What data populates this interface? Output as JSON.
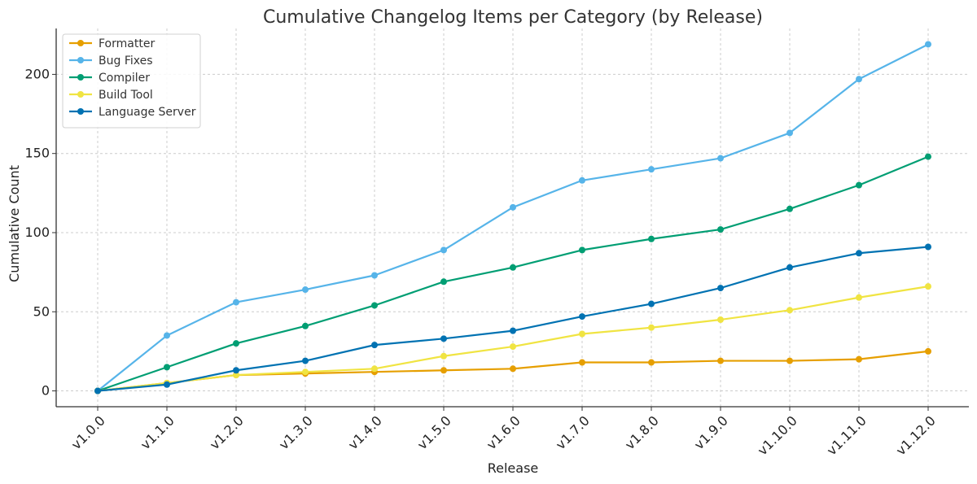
{
  "chart_data": {
    "type": "line",
    "title": "Cumulative Changelog Items per Category (by Release)",
    "xlabel": "Release",
    "ylabel": "Cumulative Count",
    "categories": [
      "v1.0.0",
      "v1.1.0",
      "v1.2.0",
      "v1.3.0",
      "v1.4.0",
      "v1.5.0",
      "v1.6.0",
      "v1.7.0",
      "v1.8.0",
      "v1.9.0",
      "v1.10.0",
      "v1.11.0",
      "v1.12.0"
    ],
    "ylim": [
      -10,
      229
    ],
    "yticks": [
      0,
      50,
      100,
      150,
      200
    ],
    "grid": true,
    "legend_position": "top-left",
    "series": [
      {
        "name": "Formatter",
        "color": "#E69F00",
        "values": [
          0,
          5,
          10,
          11,
          12,
          13,
          14,
          18,
          18,
          19,
          19,
          20,
          25
        ]
      },
      {
        "name": "Bug Fixes",
        "color": "#56B4E9",
        "values": [
          0,
          35,
          56,
          64,
          73,
          89,
          116,
          133,
          140,
          147,
          163,
          197,
          219
        ]
      },
      {
        "name": "Compiler",
        "color": "#009E73",
        "values": [
          0,
          15,
          30,
          41,
          54,
          69,
          78,
          89,
          96,
          102,
          115,
          130,
          148
        ]
      },
      {
        "name": "Build Tool",
        "color": "#F0E442",
        "values": [
          0,
          5,
          10,
          12,
          14,
          22,
          28,
          36,
          40,
          45,
          51,
          59,
          66
        ]
      },
      {
        "name": "Language Server",
        "color": "#0072B2",
        "values": [
          0,
          4,
          13,
          19,
          29,
          33,
          38,
          47,
          55,
          65,
          78,
          87,
          91
        ]
      }
    ]
  }
}
